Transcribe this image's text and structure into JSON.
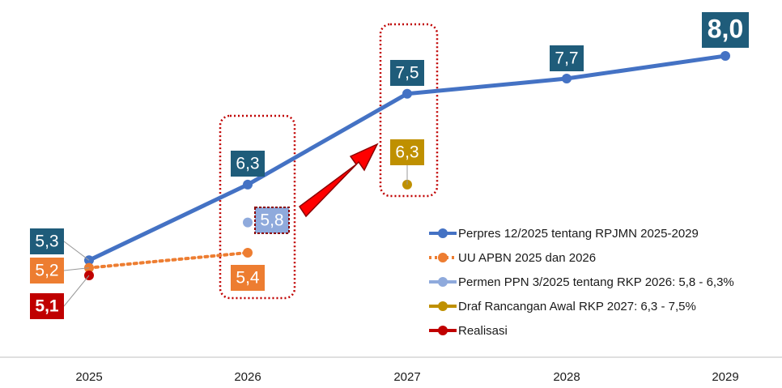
{
  "chart_data": {
    "type": "line",
    "categories": [
      "2025",
      "2026",
      "2027",
      "2028",
      "2029"
    ],
    "series": [
      {
        "name": "Perpres 12/2025 tentang RPJMN 2025-2029",
        "color": "#4472c4",
        "values": [
          5.3,
          6.3,
          7.5,
          7.7,
          8.0
        ],
        "value_labels": [
          "5,3",
          "6,3",
          "7,5",
          "7,7",
          "8,0"
        ]
      },
      {
        "name": "UU APBN 2025 dan 2026",
        "color": "#ed7d31",
        "values": [
          5.2,
          5.4,
          null,
          null,
          null
        ],
        "value_labels": [
          "5,2",
          "5,4",
          null,
          null,
          null
        ]
      },
      {
        "name": "Permen PPN 3/2025 tentang RKP 2026: 5,8 - 6,3%",
        "color": "#8faadc",
        "values": [
          null,
          5.8,
          null,
          null,
          null
        ],
        "value_labels": [
          null,
          "5,8",
          null,
          null,
          null
        ]
      },
      {
        "name": "Draf Rancangan Awal RKP 2027: 6,3 - 7,5%",
        "color": "#bf9000",
        "values": [
          null,
          null,
          6.3,
          null,
          null
        ],
        "value_labels": [
          null,
          null,
          "6,3",
          null,
          null
        ]
      },
      {
        "name": "Realisasi",
        "color": "#c00000",
        "values": [
          5.1,
          null,
          null,
          null,
          null
        ],
        "value_labels": [
          "5,1",
          null,
          null,
          null,
          null
        ]
      }
    ]
  }
}
